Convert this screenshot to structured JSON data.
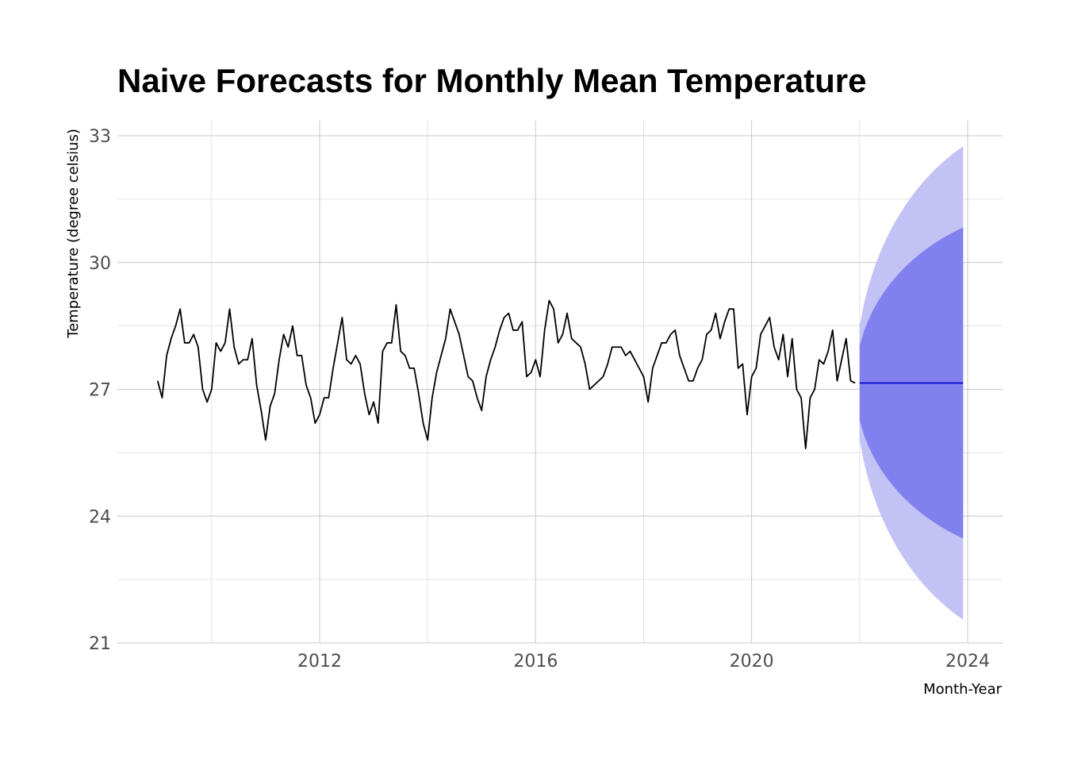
{
  "chart_data": {
    "type": "line",
    "title": "Naive Forecasts for Monthly Mean Temperature",
    "xlabel": "Month-Year",
    "ylabel": "Temperature (degree celsius)",
    "xlim": [
      2008.55,
      2024.7
    ],
    "ylim": [
      21,
      33.3
    ],
    "x_ticks": [
      2012,
      2016,
      2020,
      2024
    ],
    "x_tick_labels": [
      "2012",
      "2016",
      "2020",
      "2024"
    ],
    "x_minor_ticks": [
      2010,
      2014,
      2018,
      2022
    ],
    "y_ticks": [
      21,
      24,
      27,
      30,
      33
    ],
    "y_tick_labels": [
      "21",
      "24",
      "27",
      "30",
      "33"
    ],
    "y_minor_ticks": [
      22.5,
      25.5,
      28.5,
      31.5
    ],
    "grid": true,
    "legend": "none",
    "series": [
      {
        "name": "Observed",
        "color": "#000000",
        "start": 2009.0,
        "frequency": 12,
        "values": [
          27.2,
          26.8,
          27.8,
          28.2,
          28.5,
          28.9,
          28.1,
          28.1,
          28.3,
          28.0,
          27.0,
          26.7,
          27.0,
          28.1,
          27.9,
          28.1,
          28.9,
          28.0,
          27.6,
          27.7,
          27.7,
          28.2,
          27.1,
          26.5,
          25.8,
          26.6,
          26.9,
          27.7,
          28.3,
          28.0,
          28.5,
          27.8,
          27.8,
          27.1,
          26.8,
          26.2,
          26.4,
          26.8,
          26.8,
          27.5,
          28.1,
          28.7,
          27.7,
          27.6,
          27.8,
          27.6,
          26.9,
          26.4,
          26.7,
          26.2,
          27.9,
          28.1,
          28.1,
          29.0,
          27.9,
          27.8,
          27.5,
          27.5,
          26.9,
          26.2,
          25.8,
          26.8,
          27.4,
          27.8,
          28.2,
          28.9,
          28.6,
          28.3,
          27.8,
          27.3,
          27.2,
          26.8,
          26.5,
          27.3,
          27.7,
          28.0,
          28.4,
          28.7,
          28.8,
          28.4,
          28.4,
          28.6,
          27.3,
          27.4,
          27.7,
          27.3,
          28.4,
          29.1,
          28.9,
          28.1,
          28.3,
          28.8,
          28.2,
          28.1,
          28.0,
          27.6,
          27.0,
          27.1,
          27.2,
          27.3,
          27.6,
          28.0,
          28.0,
          28.0,
          27.8,
          27.9,
          27.7,
          27.5,
          27.3,
          26.7,
          27.5,
          27.8,
          28.1,
          28.1,
          28.3,
          28.4,
          27.8,
          27.5,
          27.2,
          27.2,
          27.5,
          27.7,
          28.3,
          28.4,
          28.8,
          28.2,
          28.6,
          28.9,
          28.9,
          27.5,
          27.6,
          26.4,
          27.3,
          27.5,
          28.3,
          28.5,
          28.7,
          28.0,
          27.7,
          28.3,
          27.3,
          28.2,
          27.0,
          26.8,
          25.6,
          26.8,
          27.0,
          27.7,
          27.6,
          27.9,
          28.4,
          27.2,
          27.7,
          28.2,
          27.2,
          27.15
        ]
      },
      {
        "name": "Point forecast",
        "color": "#0000cc",
        "start": 2022.0,
        "frequency": 12,
        "values": [
          27.15,
          27.15,
          27.15,
          27.15,
          27.15,
          27.15,
          27.15,
          27.15,
          27.15,
          27.15,
          27.15,
          27.15,
          27.15,
          27.15,
          27.15,
          27.15,
          27.15,
          27.15,
          27.15,
          27.15,
          27.15,
          27.15,
          27.15,
          27.15
        ]
      }
    ],
    "intervals": [
      {
        "name": "95% prediction interval",
        "color": "#c2c2f5",
        "half_width_h1": 1.35,
        "half_width_h24": 5.6
      },
      {
        "name": "80% prediction interval",
        "color": "#8080ee",
        "half_width_h1": 0.88,
        "half_width_h24": 3.68
      }
    ]
  }
}
